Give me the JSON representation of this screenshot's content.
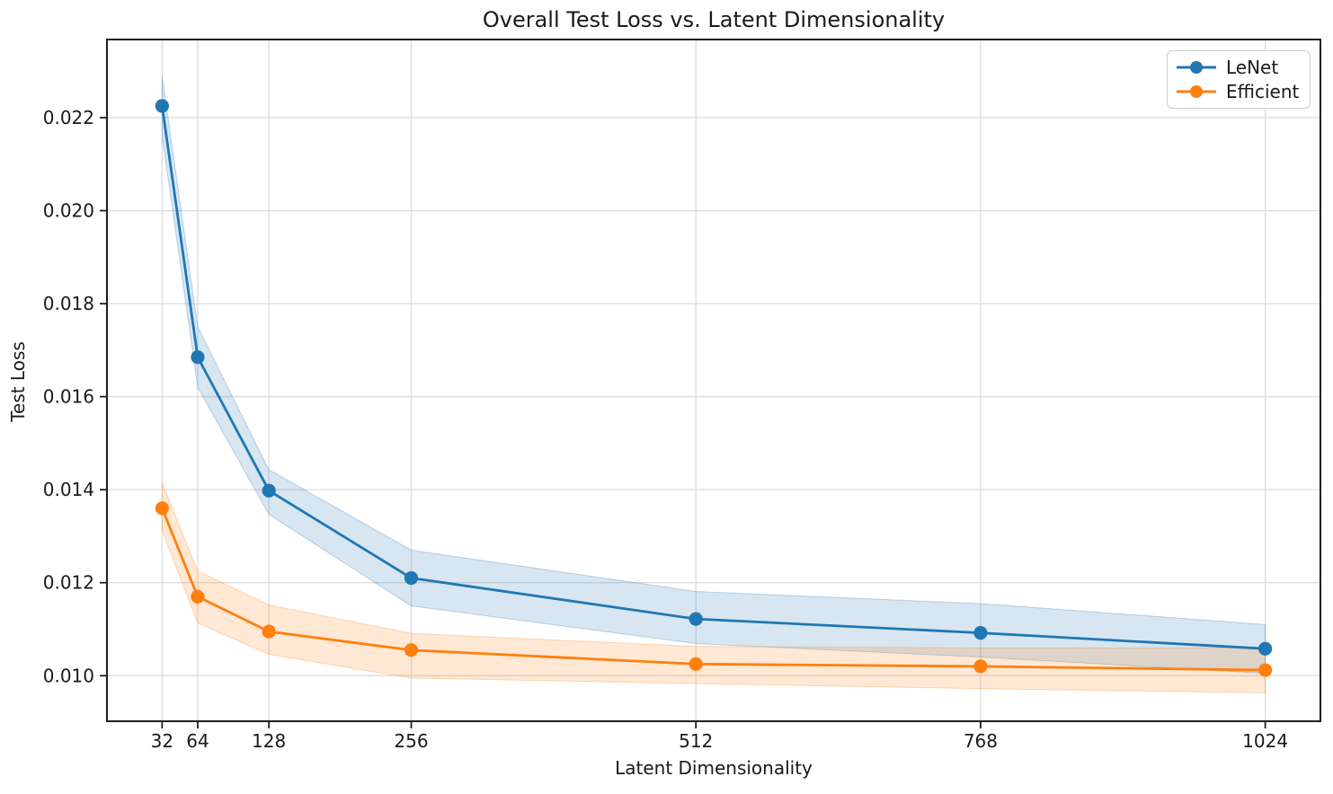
{
  "chart_data": {
    "type": "line",
    "title": "Overall Test Loss vs. Latent Dimensionality",
    "xlabel": "Latent Dimensionality",
    "ylabel": "Test Loss",
    "x": [
      32,
      64,
      128,
      256,
      512,
      768,
      1024
    ],
    "x_tick_labels": [
      "32",
      "64",
      "128",
      "256",
      "512",
      "768",
      "1024"
    ],
    "y_tick_values": [
      0.01,
      0.012,
      0.014,
      0.016,
      0.018,
      0.02,
      0.022
    ],
    "y_tick_labels": [
      "0.010",
      "0.012",
      "0.014",
      "0.016",
      "0.018",
      "0.020",
      "0.022"
    ],
    "xlim": [
      -17.6,
      1073.6
    ],
    "ylim": [
      0.00902,
      0.02368
    ],
    "grid": true,
    "legend_position": "upper right",
    "band_alpha": 0.18,
    "series": [
      {
        "name": "LeNet",
        "color": "#1f77b4",
        "values": [
          0.02225,
          0.01685,
          0.01398,
          0.0121,
          0.01122,
          0.01092,
          0.01058
        ],
        "band_upper": [
          0.0229,
          0.0175,
          0.01443,
          0.0127,
          0.01181,
          0.01155,
          0.0111
        ],
        "band_lower": [
          0.0216,
          0.0162,
          0.01347,
          0.0115,
          0.01069,
          0.0104,
          0.01005
        ]
      },
      {
        "name": "Efficient",
        "color": "#ff7f0e",
        "values": [
          0.0136,
          0.0117,
          0.01095,
          0.01055,
          0.01025,
          0.0102,
          0.01012
        ],
        "band_upper": [
          0.01415,
          0.01225,
          0.01152,
          0.01091,
          0.01063,
          0.0106,
          0.0106
        ],
        "band_lower": [
          0.01312,
          0.01113,
          0.01046,
          0.00995,
          0.00983,
          0.00972,
          0.00963
        ]
      }
    ]
  }
}
